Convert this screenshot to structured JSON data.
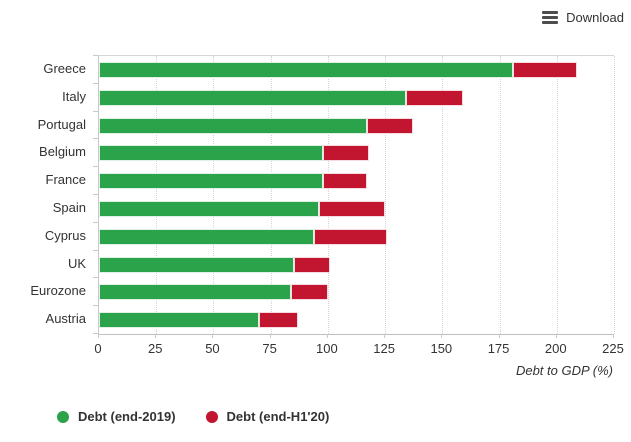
{
  "toolbar": {
    "download_label": "Download"
  },
  "chart_data": {
    "type": "bar",
    "orientation": "horizontal",
    "stacked": true,
    "title": "",
    "xlabel": "Debt to GDP (%)",
    "ylabel": "",
    "categories": [
      "Greece",
      "Italy",
      "Portugal",
      "Belgium",
      "France",
      "Spain",
      "Cyprus",
      "UK",
      "Eurozone",
      "Austria"
    ],
    "series": [
      {
        "name": "Debt (end-2019)",
        "color": "#2aa34b",
        "values": [
          181,
          134,
          117,
          98,
          98,
          96,
          94,
          85,
          84,
          70
        ]
      },
      {
        "name": "Debt (end-H1'20)",
        "color": "#c2152f",
        "values": [
          209,
          159,
          137,
          118,
          117,
          125,
          126,
          101,
          100,
          87
        ]
      }
    ],
    "series_note": "second series values are totals at end-H1'20; red segment drawn is total minus end-2019 value",
    "x_ticks": [
      0,
      25,
      50,
      75,
      100,
      125,
      150,
      175,
      200,
      225
    ],
    "xlim": [
      0,
      225
    ],
    "grid": "vertical-dotted",
    "legend_position": "bottom-left"
  }
}
